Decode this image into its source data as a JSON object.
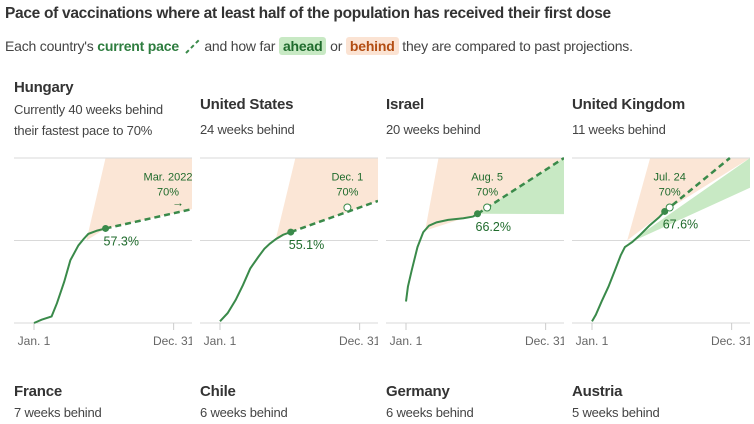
{
  "title": "Pace of vaccinations where at least half of the population has received their first dose",
  "subtitle": {
    "pre": "Each country's ",
    "current_pace": "current pace",
    "mid": " and how far ",
    "ahead": "ahead",
    "or": " or ",
    "behind": "behind",
    "post": " they are compared to past projections."
  },
  "colors": {
    "line": "#3a8a4a",
    "ahead": "#c8e9c4",
    "behind": "#fbe6d6",
    "grid": "#d9d9d9",
    "label": "#1f6b2c"
  },
  "chart_data": [
    {
      "type": "line",
      "country": "Hungary",
      "subtitle_lines": [
        "Currently 40 weeks behind",
        "their fastest pace to 70%"
      ],
      "x_ticks": [
        "Jan. 1",
        "Dec. 31"
      ],
      "ylim": [
        0,
        100
      ],
      "grid": true,
      "series": [
        [
          0,
          0
        ],
        [
          20,
          2
        ],
        [
          46,
          4
        ],
        [
          60,
          12
        ],
        [
          79,
          25
        ],
        [
          95,
          38
        ],
        [
          116,
          47
        ],
        [
          130,
          51
        ],
        [
          142,
          54
        ],
        [
          165,
          56
        ],
        [
          187,
          57.3
        ]
      ],
      "current": 57.3,
      "current_label": "57.3%",
      "projection_end": [
        413,
        69
      ],
      "target_label": "Mar. 2022",
      "target_pct": "70%",
      "target_arrow": "→",
      "target_day": null,
      "behind_cone": {
        "apex": [
          137,
          50
        ],
        "top_day": 187
      },
      "ahead_cone": null
    },
    {
      "type": "line",
      "country": "United States",
      "subtitle_lines": [
        "24 weeks behind"
      ],
      "x_ticks": [
        "Jan. 1",
        "Dec. 31"
      ],
      "ylim": [
        0,
        100
      ],
      "grid": true,
      "series": [
        [
          0,
          1
        ],
        [
          20,
          6
        ],
        [
          41,
          14
        ],
        [
          60,
          23
        ],
        [
          79,
          33
        ],
        [
          100,
          40
        ],
        [
          116,
          45
        ],
        [
          130,
          48
        ],
        [
          147,
          51
        ],
        [
          165,
          53.5
        ],
        [
          185,
          55.1
        ]
      ],
      "current": 55.1,
      "current_label": "55.1%",
      "projection_end": [
        413,
        74
      ],
      "target_label": "Dec. 1",
      "target_pct": "70%",
      "target_arrow": "",
      "target_day": 333,
      "behind_cone": {
        "apex": [
          145,
          50
        ],
        "top_day": 197
      },
      "ahead_cone": null
    },
    {
      "type": "line",
      "country": "Israel",
      "subtitle_lines": [
        "20 weeks behind"
      ],
      "x_ticks": [
        "Jan. 1",
        "Dec. 31"
      ],
      "ylim": [
        0,
        100
      ],
      "grid": true,
      "series": [
        [
          0,
          13
        ],
        [
          5,
          22
        ],
        [
          15,
          32
        ],
        [
          30,
          46
        ],
        [
          45,
          55
        ],
        [
          60,
          59
        ],
        [
          80,
          61
        ],
        [
          110,
          62.5
        ],
        [
          150,
          63.5
        ],
        [
          175,
          64.5
        ],
        [
          187,
          66.2
        ]
      ],
      "current": 66.2,
      "current_label": "66.2%",
      "projection_end": [
        413,
        100
      ],
      "target_label": "Aug. 5",
      "target_pct": "70%",
      "target_arrow": "",
      "target_day": 212,
      "behind_cone": {
        "apex": [
          50,
          56
        ],
        "top_day": 85
      },
      "ahead_cone": {
        "apex": [
          187,
          66.2
        ],
        "bottom_end": 66
      }
    },
    {
      "type": "line",
      "country": "United Kingdom",
      "subtitle_lines": [
        "11 weeks behind"
      ],
      "x_ticks": [
        "Jan. 1",
        "Dec. 31"
      ],
      "ylim": [
        0,
        100
      ],
      "grid": true,
      "series": [
        [
          0,
          1
        ],
        [
          10,
          5
        ],
        [
          25,
          13
        ],
        [
          43,
          22
        ],
        [
          60,
          32
        ],
        [
          75,
          41
        ],
        [
          86,
          46
        ],
        [
          105,
          49
        ],
        [
          124,
          53
        ],
        [
          150,
          59
        ],
        [
          175,
          64
        ],
        [
          190,
          67.6
        ]
      ],
      "current": 67.6,
      "current_label": "67.6%",
      "projection_end": [
        413,
        110
      ],
      "target_label": "Jul. 24",
      "target_pct": "70%",
      "target_arrow": "",
      "target_day": 203,
      "behind_cone": {
        "apex": [
          92,
          50
        ],
        "top_day": 152
      },
      "ahead_cone": {
        "apex": [
          92,
          48
        ],
        "bottom_end": 82
      }
    }
  ],
  "second_row": [
    {
      "country": "France",
      "subtitle": "7 weeks behind"
    },
    {
      "country": "Chile",
      "subtitle": "6 weeks behind"
    },
    {
      "country": "Germany",
      "subtitle": "6 weeks behind"
    },
    {
      "country": "Austria",
      "subtitle": "5 weeks behind"
    }
  ]
}
